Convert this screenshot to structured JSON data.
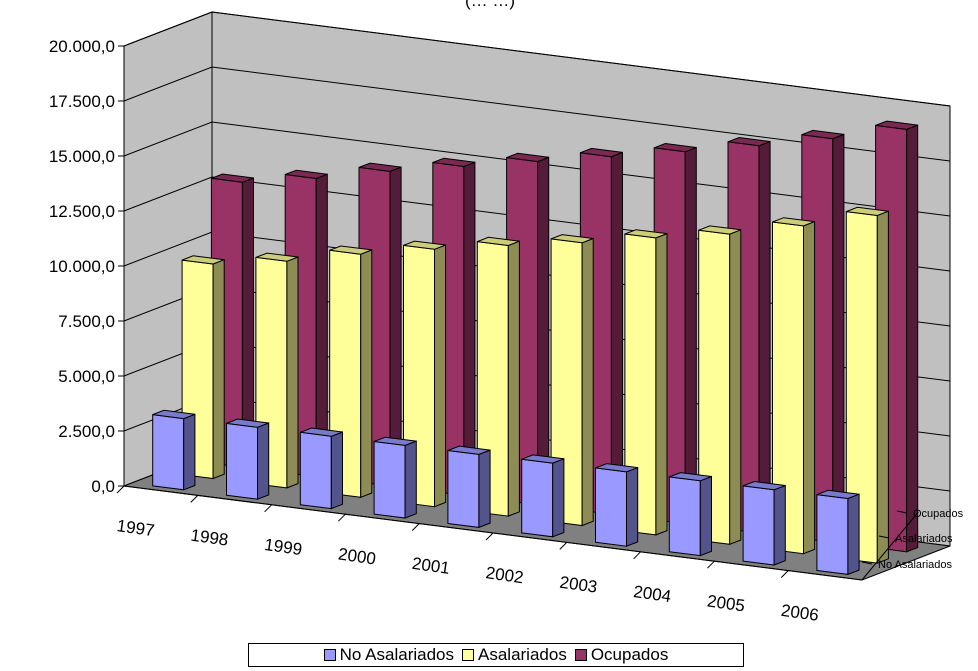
{
  "chart_data": {
    "type": "bar",
    "title": "(… …)",
    "categories": [
      "1997",
      "1998",
      "1999",
      "2000",
      "2001",
      "2002",
      "2003",
      "2004",
      "2005",
      "2006"
    ],
    "series": [
      {
        "name": "No Asalariados",
        "values": [
          3240,
          3270,
          3290,
          3300,
          3320,
          3350,
          3380,
          3400,
          3420,
          3450
        ],
        "color": "#9999ff"
      },
      {
        "name": "Asalariados",
        "values": [
          9750,
          10300,
          11050,
          11700,
          12300,
          12850,
          13500,
          14100,
          14900,
          15800
        ],
        "color": "#ffff99"
      },
      {
        "name": "Ocupados",
        "values": [
          12950,
          13550,
          14300,
          14950,
          15600,
          16250,
          16900,
          17600,
          18350,
          19200
        ],
        "color": "#993366"
      }
    ],
    "y_ticks": [
      "0,0",
      "2.500,0",
      "5.000,0",
      "7.500,0",
      "10.000,0",
      "12.500,0",
      "15.000,0",
      "17.500,0",
      "20.000,0"
    ],
    "depth_labels": [
      "Ocupados",
      "Asalariados",
      "No Asalariados"
    ],
    "ylim": [
      0,
      20000
    ],
    "grid": true,
    "legend_position": "bottom",
    "projection": "3d"
  }
}
